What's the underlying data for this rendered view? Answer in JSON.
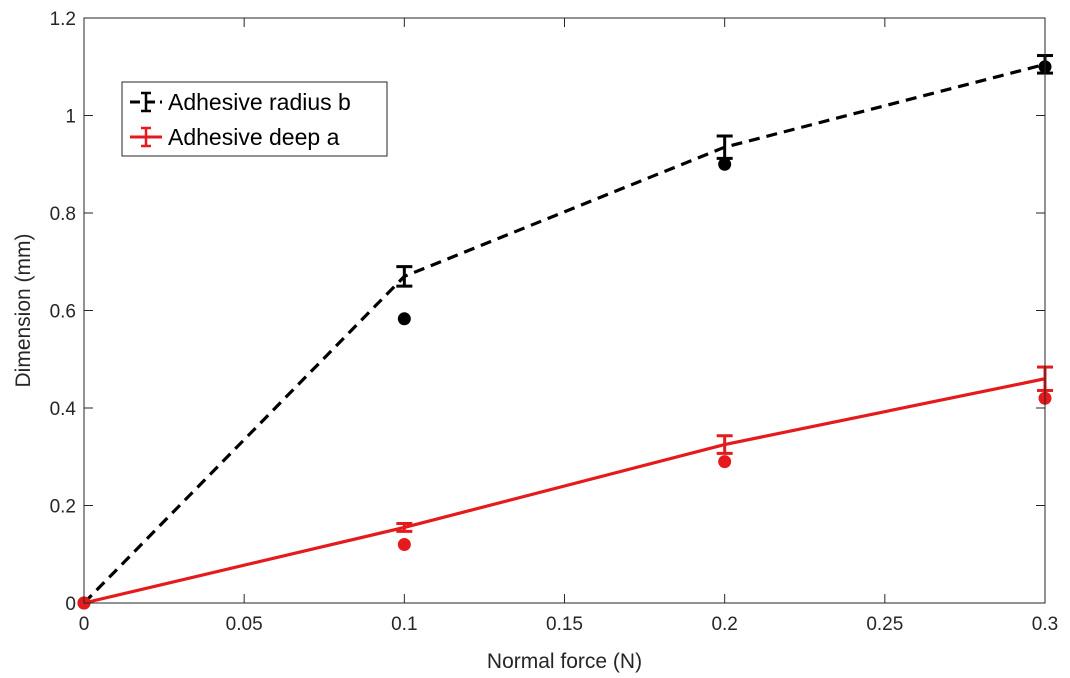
{
  "chart_data": {
    "type": "line",
    "title": "",
    "xlabel": "Normal force (N)",
    "ylabel": "Dimension (mm)",
    "xlim": [
      0,
      0.3
    ],
    "ylim": [
      0,
      1.2
    ],
    "xticks": [
      0,
      0.05,
      0.1,
      0.15,
      0.2,
      0.25,
      0.3
    ],
    "xtick_labels": [
      "0",
      "0.05",
      "0.1",
      "0.15",
      "0.2",
      "0.25",
      "0.3"
    ],
    "yticks": [
      0,
      0.2,
      0.4,
      0.6,
      0.8,
      1.0,
      1.2
    ],
    "ytick_labels": [
      "0",
      "0.2",
      "0.4",
      "0.6",
      "0.8",
      "1",
      "1.2"
    ],
    "grid": false,
    "legend_position": "top-left",
    "series": [
      {
        "name": "Adhesive radius b",
        "color": "#000000",
        "line_style": "dashed",
        "x": [
          0,
          0.1,
          0.2,
          0.3
        ],
        "y": [
          0,
          0.67,
          0.935,
          1.105
        ],
        "error": [
          0,
          0.02,
          0.023,
          0.018
        ],
        "markers": {
          "x": [
            0,
            0.1,
            0.2,
            0.3
          ],
          "y": [
            0,
            0.583,
            0.9,
            1.1
          ]
        }
      },
      {
        "name": "Adhesive deep a",
        "color": "#e41a1c",
        "line_style": "solid",
        "x": [
          0,
          0.1,
          0.2,
          0.3
        ],
        "y": [
          0,
          0.155,
          0.325,
          0.46
        ],
        "error": [
          0,
          0.008,
          0.018,
          0.024
        ],
        "markers": {
          "x": [
            0,
            0.1,
            0.2,
            0.3
          ],
          "y": [
            0,
            0.12,
            0.29,
            0.42
          ]
        }
      }
    ]
  }
}
